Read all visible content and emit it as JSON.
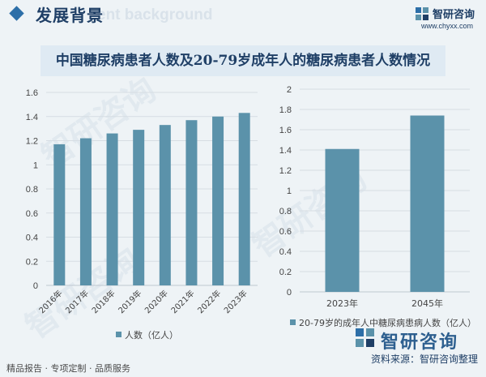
{
  "header": {
    "title": "发展背景",
    "ghost_text": "ent background",
    "brand_name": "智研咨询",
    "brand_url": "www.chyxx.com",
    "accent_color": "#2d6fa8"
  },
  "title": "中国糖尿病患者人数及20-79岁成年人的糖尿病患者人数情况",
  "footer": {
    "left": "精品报告 · 专项定制 · 品质服务",
    "source_label": "资料来源：",
    "source_value": "智研咨询整理",
    "brand_big": "智研咨询"
  },
  "colors": {
    "bar": "#5b92aa",
    "grid": "#d6dde3",
    "axis_text": "#444444"
  },
  "chart_data": [
    {
      "type": "bar",
      "categories": [
        "2016年",
        "2017年",
        "2018年",
        "2019年",
        "2020年",
        "2021年",
        "2022年",
        "2023年"
      ],
      "series": [
        {
          "name": "人数（亿人）",
          "values": [
            1.17,
            1.22,
            1.26,
            1.29,
            1.33,
            1.37,
            1.4,
            1.43
          ]
        }
      ],
      "ylim": [
        0,
        1.6
      ],
      "yticks": [
        "0",
        "0.2",
        "0.4",
        "0.6",
        "0.8",
        "1",
        "1.2",
        "1.4",
        "1.6"
      ],
      "grid": true,
      "legend": "bottom"
    },
    {
      "type": "bar",
      "categories": [
        "2023年",
        "2045年"
      ],
      "series": [
        {
          "name": "20-79岁的成年人中糖尿病患病人数（亿人）",
          "values": [
            1.41,
            1.74
          ]
        }
      ],
      "ylim": [
        0,
        2
      ],
      "yticks": [
        "0",
        "0.2",
        "0.4",
        "0.6",
        "0.8",
        "1",
        "1.2",
        "1.4",
        "1.6",
        "1.8",
        "2"
      ],
      "grid": true,
      "legend": "bottom"
    }
  ]
}
